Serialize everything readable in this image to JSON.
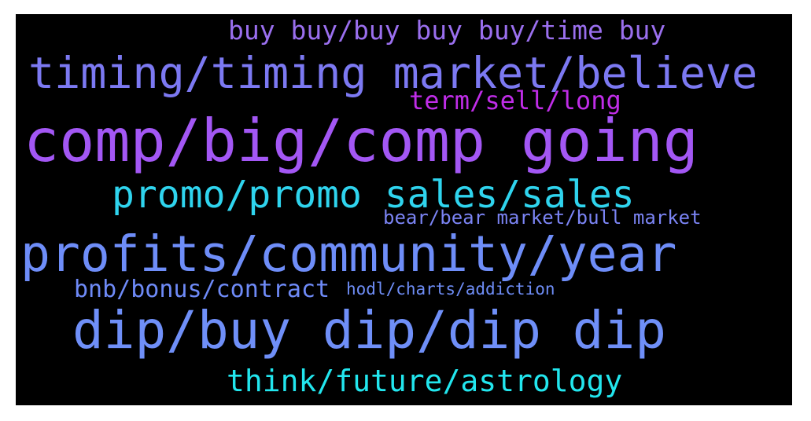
{
  "words": [
    {
      "text": "buy buy/buy buy buy/time buy",
      "color": "#9a6fee"
    },
    {
      "text": "timing/timing market/believe",
      "color": "#7c79f2"
    },
    {
      "text": "term/sell/long",
      "color": "#c02de8"
    },
    {
      "text": "comp/big/comp going",
      "color": "#a357f4"
    },
    {
      "text": "promo/promo sales/sales",
      "color": "#2fd4ee"
    },
    {
      "text": "bear/bear market/bull market",
      "color": "#7b84f4"
    },
    {
      "text": "profits/community/year",
      "color": "#6e8df8"
    },
    {
      "text": "bnb/bonus/contract",
      "color": "#6e8af7"
    },
    {
      "text": "hodl/charts/addiction",
      "color": "#6e8df6"
    },
    {
      "text": "dip/buy dip/dip dip",
      "color": "#6f8ff8"
    },
    {
      "text": "think/future/astrology",
      "color": "#22e6ee"
    }
  ]
}
